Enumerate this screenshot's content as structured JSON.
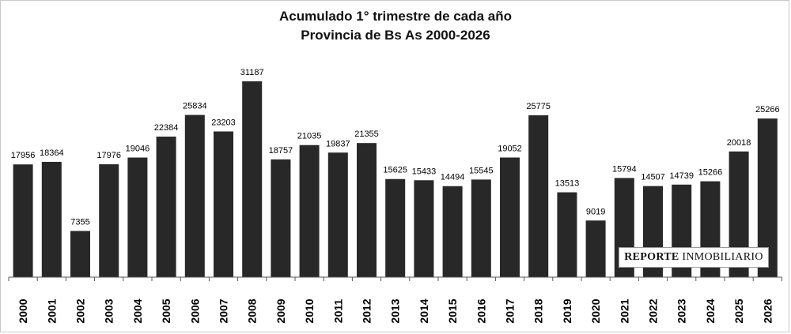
{
  "chart_data": {
    "type": "bar",
    "title": "Acumulado 1° trimestre de cada año",
    "subtitle": "Provincia de Bs As 2000-2026",
    "categories": [
      "2000",
      "2001",
      "2002",
      "2003",
      "2004",
      "2005",
      "2006",
      "2007",
      "2008",
      "2009",
      "2010",
      "2011",
      "2012",
      "2013",
      "2014",
      "2015",
      "2016",
      "2017",
      "2018",
      "2019",
      "2020",
      "2021",
      "2022",
      "2023",
      "2024",
      "2025",
      "2026"
    ],
    "values": [
      17956,
      18364,
      7355,
      17976,
      19046,
      22384,
      25834,
      23203,
      31187,
      18757,
      21035,
      19837,
      21355,
      15625,
      15433,
      14494,
      15545,
      19052,
      25775,
      13513,
      9019,
      15794,
      14507,
      14739,
      15266,
      20018,
      25266
    ],
    "ylim": [
      0,
      31187
    ],
    "bar_color": "#282828",
    "grid": false,
    "xlabel": "",
    "ylabel": ""
  },
  "watermark": {
    "bold": "REPORTE",
    "regular": "INMOBILIARIO"
  }
}
